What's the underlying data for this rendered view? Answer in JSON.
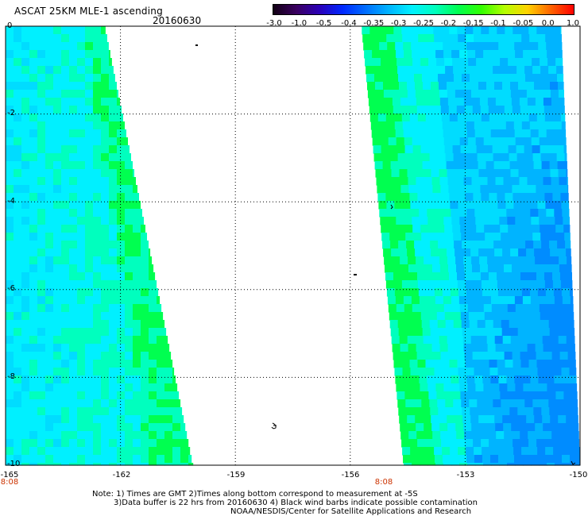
{
  "header": {
    "title": "ASCAT 25KM MLE-1 ascending",
    "date": "20160630"
  },
  "colorbar": {
    "labels": [
      "-3.0",
      "-1.0",
      "-0.5",
      "-0.4",
      "-0.35",
      "-0.3",
      "-0.25",
      "-0.2",
      "-0.15",
      "-0.1",
      "-0.05",
      "0.0",
      "1.0"
    ],
    "colors": [
      "#120014",
      "#3a0060",
      "#2a00b8",
      "#0028ff",
      "#006eff",
      "#00b4ff",
      "#00f0ff",
      "#00ffbe",
      "#00ff50",
      "#32ff00",
      "#b4ff00",
      "#ffd200",
      "#ff6400",
      "#ff0000"
    ]
  },
  "axes": {
    "lat_labels": [
      "0",
      "-2",
      "-4",
      "-6",
      "-8",
      "-10"
    ],
    "lon_labels": [
      "-165",
      "-162",
      "-159",
      "-156",
      "-153",
      "-150"
    ],
    "time_labels": [
      {
        "text": "8:08",
        "lon": -165
      },
      {
        "text": "8:08",
        "lon": -155.5
      }
    ],
    "lat_range": [
      -10,
      0
    ],
    "lon_range": [
      -165,
      -150
    ]
  },
  "map": {
    "type": "satellite wind measurement swaths",
    "grid": "dotted",
    "swaths": [
      {
        "name": "west",
        "top_lon": [
          -165,
          -162.4
        ],
        "bottom_lon": [
          -165,
          -160.1
        ]
      },
      {
        "name": "east",
        "top_lon": [
          -155.7,
          -150.5
        ],
        "bottom_lon": [
          -154.6,
          -150
        ]
      }
    ]
  },
  "notes": [
    "Note: 1) Times are GMT 2)Times along bottom correspond to measurement at -5S",
    "3)Data buffer is 22 hrs from 20160630 4) Black wind barbs indicate possible contamination",
    "NOAA/NESDIS/Center for Satellite Applications and Research"
  ]
}
